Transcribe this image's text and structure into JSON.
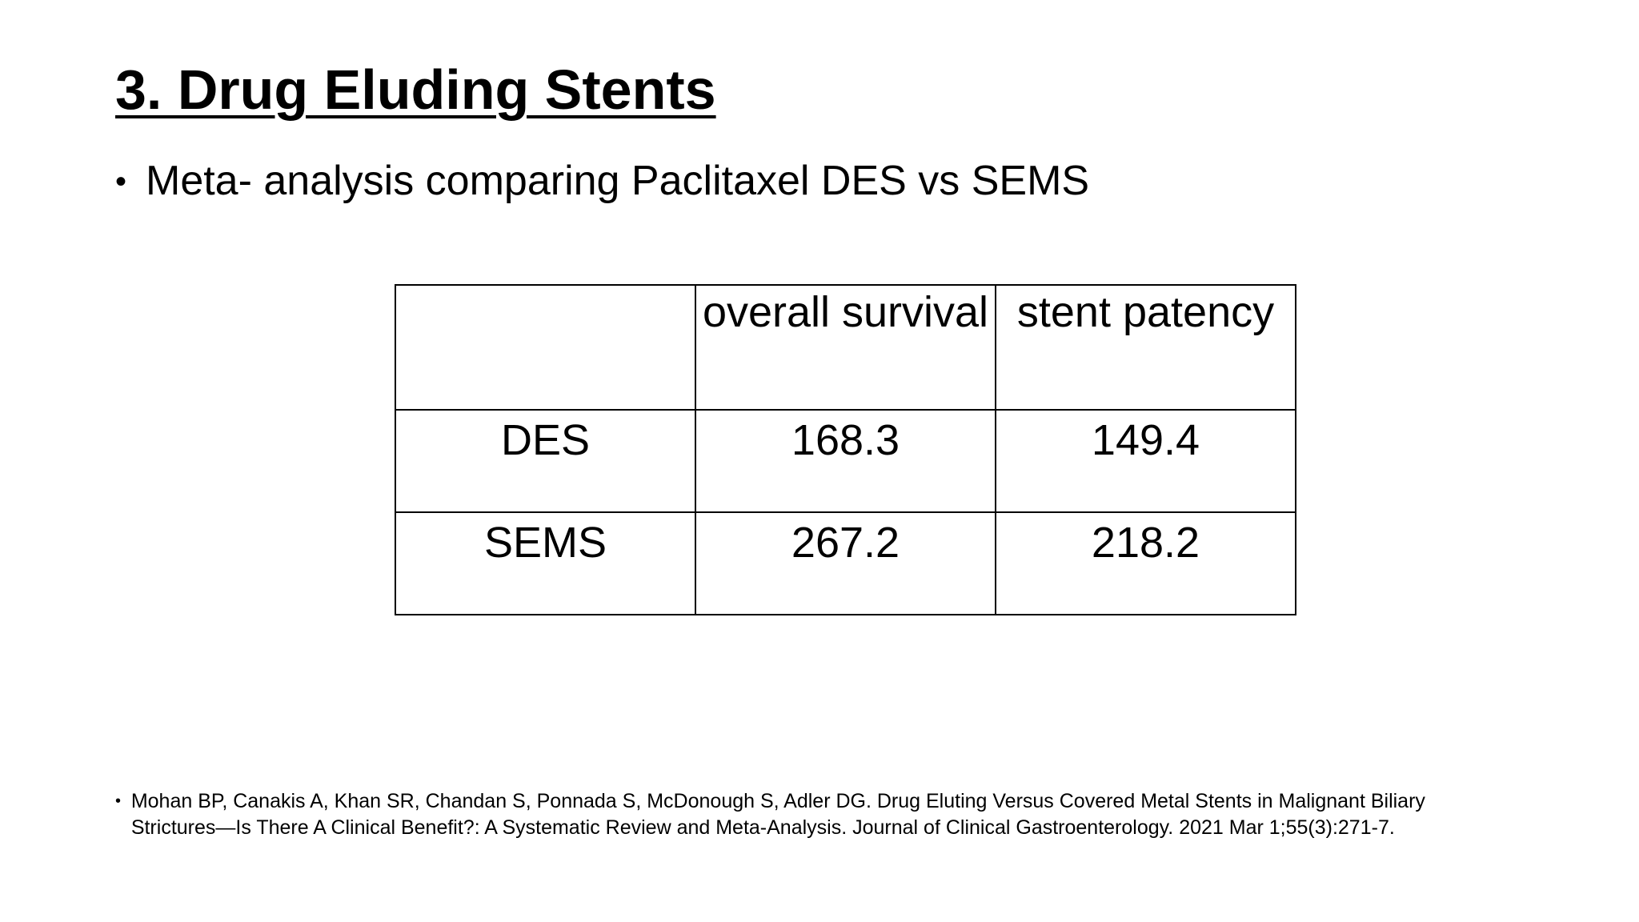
{
  "slide": {
    "title": "3. Drug Eluding Stents",
    "bullet": "Meta- analysis comparing  Paclitaxel DES vs SEMS",
    "table": {
      "header": [
        "overall survival",
        "stent patency"
      ],
      "rows": [
        [
          "DES",
          168.3,
          149.4
        ],
        [
          "SEMS",
          267.2,
          218.2
        ]
      ]
    },
    "reference": "Mohan BP, Canakis A, Khan SR, Chandan S, Ponnada S, McDonough S, Adler DG. Drug Eluting Versus Covered Metal Stents in Malignant Biliary Strictures—Is There A Clinical Benefit?: A Systematic Review and Meta-Analysis. Journal of Clinical Gastroenterology. 2021 Mar 1;55(3):271-7."
  }
}
